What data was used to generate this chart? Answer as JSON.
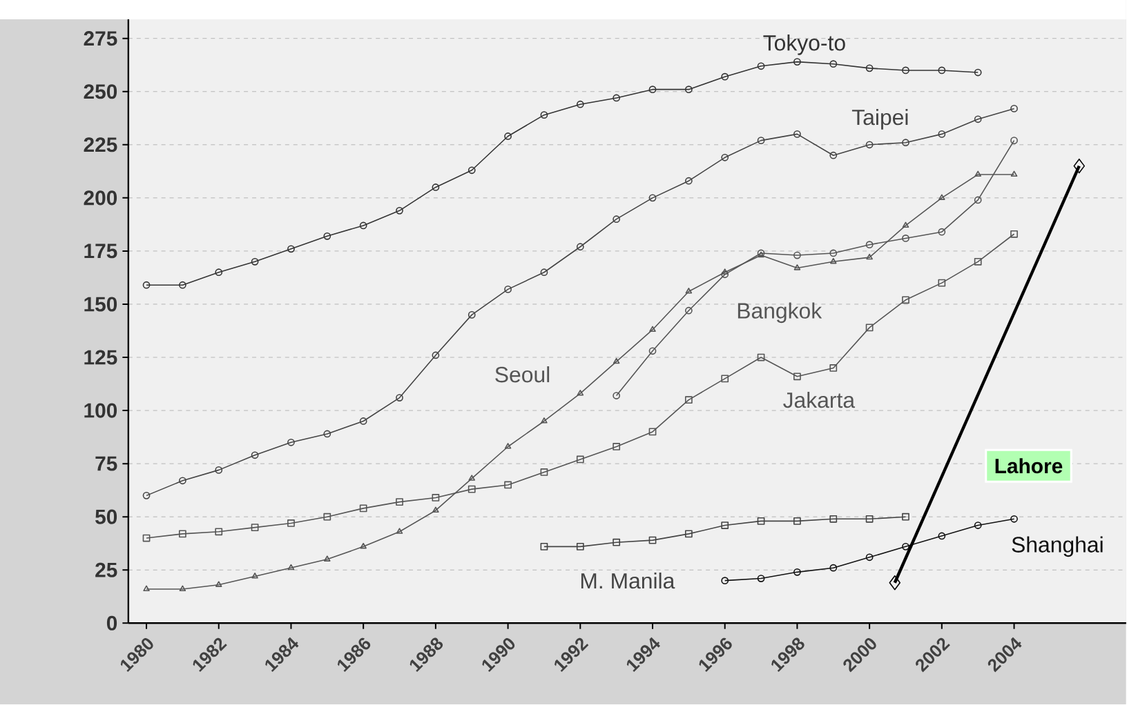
{
  "chart_data": {
    "type": "line",
    "xlim": [
      1979.5,
      2007.1
    ],
    "ylim": [
      0,
      284
    ],
    "xticks": [
      1980,
      1982,
      1984,
      1986,
      1988,
      1990,
      1992,
      1994,
      1996,
      1998,
      2000,
      2002,
      2004
    ],
    "yticks": [
      0,
      25,
      50,
      75,
      100,
      125,
      150,
      175,
      200,
      225,
      250,
      275
    ],
    "grid": "y",
    "series": [
      {
        "name": "Tokyo-to",
        "color": "#333333",
        "marker": "circle",
        "x": [
          1980,
          1981,
          1982,
          1983,
          1984,
          1985,
          1986,
          1987,
          1988,
          1989,
          1990,
          1991,
          1992,
          1993,
          1994,
          1995,
          1996,
          1997,
          1998,
          1999,
          2000,
          2001,
          2002,
          2003
        ],
        "values": [
          159,
          159,
          165,
          170,
          176,
          182,
          187,
          194,
          205,
          213,
          229,
          239,
          244,
          247,
          251,
          251,
          257,
          262,
          264,
          263,
          261,
          260,
          260,
          259
        ]
      },
      {
        "name": "Taipei",
        "color": "#444444",
        "marker": "circle",
        "x": [
          1980,
          1981,
          1982,
          1983,
          1984,
          1985,
          1986,
          1987,
          1988,
          1989,
          1990,
          1991,
          1992,
          1993,
          1994,
          1995,
          1996,
          1997,
          1998,
          1999,
          2000,
          2001,
          2002,
          2003,
          2004
        ],
        "values": [
          60,
          67,
          72,
          79,
          85,
          89,
          95,
          106,
          126,
          145,
          157,
          165,
          177,
          190,
          200,
          208,
          219,
          227,
          230,
          220,
          225,
          226,
          230,
          237,
          242
        ]
      },
      {
        "name": "Bangkok",
        "color": "#555555",
        "marker": "circle",
        "x": [
          1993,
          1994,
          1995,
          1996,
          1997,
          1998,
          1999,
          2000,
          2001,
          2002,
          2003,
          2004
        ],
        "values": [
          107,
          128,
          147,
          164,
          174,
          173,
          174,
          178,
          181,
          184,
          199,
          227
        ]
      },
      {
        "name": "Seoul",
        "color": "#555555",
        "marker": "triangle",
        "x": [
          1980,
          1981,
          1982,
          1983,
          1984,
          1985,
          1986,
          1987,
          1988,
          1989,
          1990,
          1991,
          1992,
          1993,
          1994,
          1995,
          1996,
          1997,
          1998,
          1999,
          2000,
          2001,
          2002,
          2003,
          2004
        ],
        "values": [
          16,
          16,
          18,
          22,
          26,
          30,
          36,
          43,
          53,
          68,
          83,
          95,
          108,
          123,
          138,
          156,
          165,
          173,
          167,
          170,
          172,
          187,
          200,
          211,
          211
        ]
      },
      {
        "name": "Jakarta",
        "color": "#555555",
        "marker": "square",
        "x": [
          1980,
          1981,
          1982,
          1983,
          1984,
          1985,
          1986,
          1987,
          1988,
          1989,
          1990,
          1991,
          1992,
          1993,
          1994,
          1995,
          1996,
          1997,
          1998,
          1999,
          2000,
          2001,
          2002,
          2003,
          2004
        ],
        "values": [
          40,
          42,
          43,
          45,
          47,
          50,
          54,
          57,
          59,
          63,
          65,
          71,
          77,
          83,
          90,
          105,
          115,
          125,
          116,
          120,
          139,
          152,
          160,
          170,
          183
        ]
      },
      {
        "name": "M. Manila",
        "color": "#444444",
        "marker": "square",
        "x": [
          1991,
          1992,
          1993,
          1994,
          1995,
          1996,
          1997,
          1998,
          1999,
          2000,
          2001
        ],
        "values": [
          36,
          36,
          38,
          39,
          42,
          46,
          48,
          48,
          49,
          49,
          50
        ]
      },
      {
        "name": "Shanghai",
        "color": "#111111",
        "marker": "circle",
        "x": [
          1996,
          1997,
          1998,
          1999,
          2000,
          2001,
          2002,
          2003,
          2004
        ],
        "values": [
          20,
          21,
          24,
          26,
          31,
          36,
          41,
          46,
          49
        ]
      },
      {
        "name": "Lahore",
        "color": "#000000",
        "marker": "diamond",
        "x": [
          2000.7,
          2005.8
        ],
        "values": [
          19,
          215
        ]
      }
    ]
  }
}
